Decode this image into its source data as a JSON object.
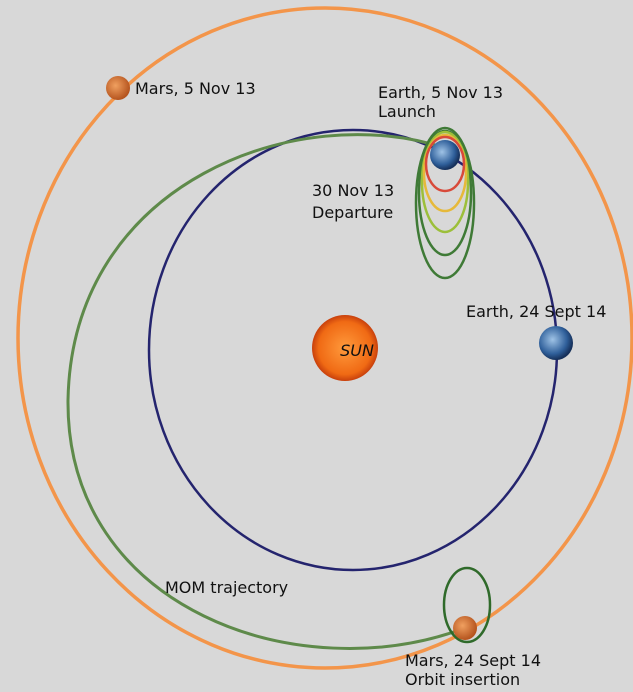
{
  "title_sun": "SUN",
  "labels": {
    "mars_start": "Mars, 5 Nov 13",
    "earth_launch": [
      "Earth, 5 Nov 13",
      "Launch"
    ],
    "departure": [
      "30 Nov 13",
      "Departure"
    ],
    "earth_arrival": "Earth, 24 Sept 14",
    "trajectory": "MOM trajectory",
    "mars_arrival": [
      "Mars, 24 Sept 14",
      "Orbit insertion"
    ]
  }
}
